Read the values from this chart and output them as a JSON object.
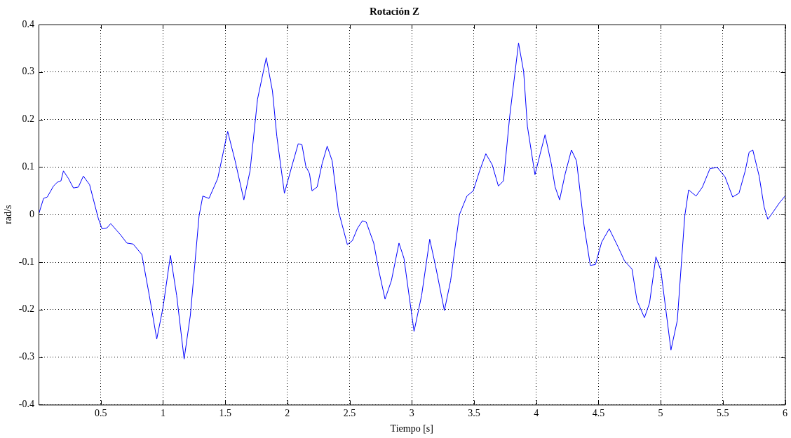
{
  "chart_data": {
    "type": "line",
    "title": "Rotación Z",
    "xlabel": "Tiempo [s]",
    "ylabel": "rad/s",
    "xlim": [
      0,
      6
    ],
    "xticks": [
      0.5,
      1,
      1.5,
      2,
      2.5,
      3,
      3.5,
      4,
      4.5,
      5,
      5.5,
      6
    ],
    "ylim": [
      -0.4,
      0.4
    ],
    "yticks": [
      -0.4,
      -0.3,
      -0.2,
      -0.1,
      0,
      0.1,
      0.2,
      0.3,
      0.4
    ],
    "grid": true,
    "legend": false,
    "marker": "none",
    "line_style": "solid",
    "series": [
      {
        "color": "#0000ff",
        "x": [
          0,
          0.04,
          0.07,
          0.12,
          0.15,
          0.18,
          0.2,
          0.24,
          0.28,
          0.32,
          0.36,
          0.41,
          0.48,
          0.51,
          0.55,
          0.58,
          0.63,
          0.66,
          0.71,
          0.76,
          0.83,
          0.89,
          0.95,
          1.0,
          1.06,
          1.11,
          1.17,
          1.22,
          1.29,
          1.32,
          1.37,
          1.44,
          1.52,
          1.58,
          1.65,
          1.7,
          1.76,
          1.83,
          1.88,
          1.915,
          1.976,
          2.036,
          2.087,
          2.117,
          2.148,
          2.178,
          2.198,
          2.239,
          2.279,
          2.32,
          2.36,
          2.41,
          2.482,
          2.522,
          2.563,
          2.603,
          2.634,
          2.694,
          2.735,
          2.785,
          2.836,
          2.897,
          2.937,
          3.018,
          3.079,
          3.144,
          3.19,
          3.262,
          3.312,
          3.383,
          3.443,
          3.494,
          3.545,
          3.595,
          3.646,
          3.696,
          3.737,
          3.787,
          3.858,
          3.899,
          3.929,
          3.99,
          4.03,
          4.071,
          4.121,
          4.152,
          4.188,
          4.233,
          4.283,
          4.324,
          4.385,
          4.435,
          4.476,
          4.526,
          4.587,
          4.658,
          4.709,
          4.77,
          4.81,
          4.87,
          4.911,
          4.962,
          5.002,
          5.083,
          5.134,
          5.194,
          5.225,
          5.285,
          5.336,
          5.397,
          5.457,
          5.518,
          5.579,
          5.63,
          5.68,
          5.711,
          5.741,
          5.792,
          5.832,
          5.862,
          5.903,
          5.953,
          6.0
        ],
        "values": [
          0,
          0.034,
          0.037,
          0.06,
          0.068,
          0.071,
          0.092,
          0.076,
          0.056,
          0.058,
          0.081,
          0.063,
          -0.008,
          -0.03,
          -0.028,
          -0.019,
          -0.034,
          -0.043,
          -0.06,
          -0.062,
          -0.084,
          -0.17,
          -0.262,
          -0.196,
          -0.086,
          -0.17,
          -0.304,
          -0.212,
          -0.003,
          0.039,
          0.034,
          0.076,
          0.175,
          0.113,
          0.031,
          0.092,
          0.243,
          0.33,
          0.26,
          0.165,
          0.045,
          0.102,
          0.149,
          0.147,
          0.102,
          0.086,
          0.05,
          0.058,
          0.107,
          0.144,
          0.113,
          0.008,
          -0.063,
          -0.055,
          -0.029,
          -0.013,
          -0.016,
          -0.06,
          -0.118,
          -0.178,
          -0.139,
          -0.06,
          -0.092,
          -0.246,
          -0.17,
          -0.052,
          -0.107,
          -0.202,
          -0.139,
          0,
          0.039,
          0.05,
          0.092,
          0.128,
          0.105,
          0.06,
          0.071,
          0.207,
          0.361,
          0.301,
          0.186,
          0.084,
          0.126,
          0.168,
          0.107,
          0.058,
          0.031,
          0.086,
          0.136,
          0.113,
          -0.024,
          -0.107,
          -0.105,
          -0.058,
          -0.03,
          -0.068,
          -0.097,
          -0.115,
          -0.181,
          -0.217,
          -0.186,
          -0.089,
          -0.118,
          -0.285,
          -0.223,
          -0.003,
          0.052,
          0.039,
          0.058,
          0.097,
          0.099,
          0.079,
          0.037,
          0.045,
          0.092,
          0.131,
          0.136,
          0.081,
          0.016,
          -0.01,
          0.005,
          0.024,
          0.039
        ]
      }
    ]
  }
}
